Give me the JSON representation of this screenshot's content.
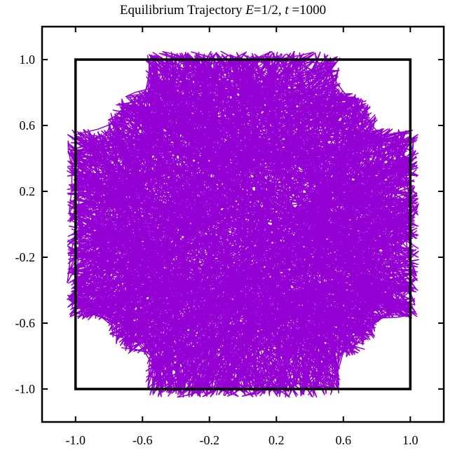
{
  "chart_data": {
    "type": "line",
    "title": {
      "prefix": "Equilibrium Trajectory ",
      "var1": "E",
      "eq1": "=1/2, ",
      "var2": "t",
      "eq2": " =1000"
    },
    "xlabel": "",
    "ylabel": "",
    "xlim": [
      -1.2,
      1.2
    ],
    "ylim": [
      -1.2,
      1.2
    ],
    "x_ticks": [
      "-1.0",
      "-0.6",
      "-0.2",
      "0.2",
      "0.6",
      "1.0"
    ],
    "x_tick_values": [
      -1.0,
      -0.6,
      -0.2,
      0.2,
      0.6,
      1.0
    ],
    "y_ticks": [
      "1.0",
      "0.6",
      "0.2",
      "-0.2",
      "-0.6",
      "-1.0"
    ],
    "y_tick_values": [
      1.0,
      0.6,
      0.2,
      -0.2,
      -0.6,
      -1.0
    ],
    "box": {
      "x": [
        -1.0,
        1.0
      ],
      "y": [
        -1.0,
        1.0
      ]
    },
    "trajectory_region": {
      "inner_corner_cut": 0.58,
      "bulge_extent": 1.05,
      "corner_lobe_reach": 0.6
    },
    "series_color": "#9400d3",
    "box_color": "#000000",
    "grid": false,
    "legend": "none"
  }
}
